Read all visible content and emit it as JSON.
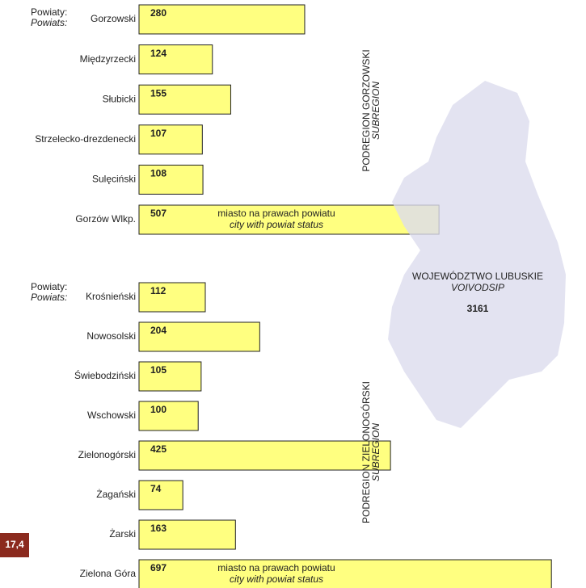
{
  "chart_data": [
    {
      "type": "bar",
      "orientation": "horizontal",
      "group_label": "Powiaty:",
      "group_label_en": "Powiats:",
      "subregion": "PODREGION GORZOWSKI",
      "subregion_en": "SUBREGION",
      "categories": [
        "Gorzowski",
        "Międzyrzecki",
        "Słubicki",
        "Strzelecko-drezdenecki",
        "Sulęciński",
        "Gorzów Wlkp."
      ],
      "values": [
        280,
        124,
        155,
        107,
        108,
        507
      ],
      "notes": [
        null,
        null,
        null,
        null,
        null,
        "miasto na prawach powiatu"
      ],
      "notes_en": [
        null,
        null,
        null,
        null,
        null,
        "city with powiat status"
      ],
      "color": "#ffff80"
    },
    {
      "type": "bar",
      "orientation": "horizontal",
      "group_label": "Powiaty:",
      "group_label_en": "Powiats:",
      "subregion": "PODREGION ZIELONOGÓRSKI",
      "subregion_en": "SUBREGION",
      "categories": [
        "Krośnieński",
        "Nowosolski",
        "Świebodziński",
        "Wschowski",
        "Zielonogórski",
        "Żagański",
        "Żarski",
        "Zielona Góra"
      ],
      "values": [
        112,
        204,
        105,
        100,
        425,
        74,
        163,
        697
      ],
      "notes": [
        null,
        null,
        null,
        null,
        null,
        null,
        null,
        "miasto na prawach powiatu"
      ],
      "notes_en": [
        null,
        null,
        null,
        null,
        null,
        null,
        null,
        "city with powiat status"
      ],
      "color": "#ffff80"
    }
  ],
  "map": {
    "name": "WOJEWÓDZTWO LUBUSKIE",
    "name_en": "VOIVODSIP",
    "total": 3161,
    "color": "#dcdcee"
  },
  "badge": "17,4"
}
